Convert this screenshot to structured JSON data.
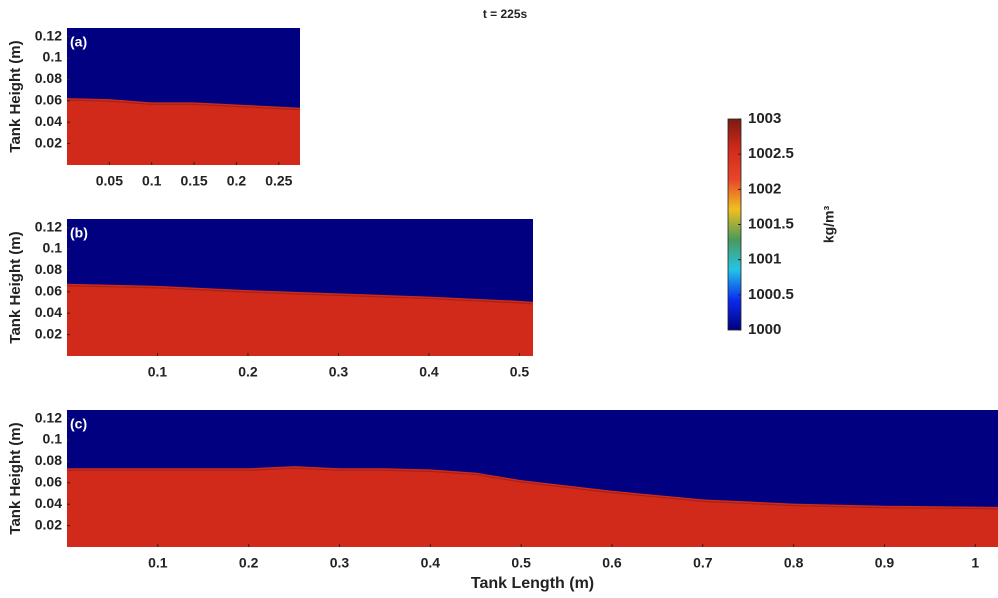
{
  "title": "t = 225s",
  "chart_data": [
    {
      "type": "heatmap",
      "label": "(a)",
      "ylabel": "Tank Height (m)",
      "xlim": [
        0,
        0.275
      ],
      "ylim": [
        0,
        0.128
      ],
      "xticks": [
        0.05,
        0.1,
        0.15,
        0.2,
        0.25
      ],
      "yticks": [
        0.02,
        0.04,
        0.06,
        0.08,
        0.1,
        0.12
      ],
      "interface": {
        "x": [
          0,
          0.05,
          0.1,
          0.15,
          0.2,
          0.25,
          0.275
        ],
        "y": [
          0.07,
          0.069,
          0.066,
          0.066,
          0.064,
          0.062,
          0.061
        ]
      }
    },
    {
      "type": "heatmap",
      "label": "(b)",
      "ylabel": "Tank Height (m)",
      "xlim": [
        0,
        0.515
      ],
      "ylim": [
        0,
        0.128
      ],
      "xticks": [
        0.1,
        0.2,
        0.3,
        0.4,
        0.5
      ],
      "yticks": [
        0.02,
        0.04,
        0.06,
        0.08,
        0.1,
        0.12
      ],
      "interface": {
        "x": [
          0,
          0.1,
          0.2,
          0.3,
          0.4,
          0.5,
          0.515
        ],
        "y": [
          0.075,
          0.073,
          0.069,
          0.066,
          0.063,
          0.059,
          0.058
        ]
      }
    },
    {
      "type": "heatmap",
      "label": "(c)",
      "ylabel": "Tank Height (m)",
      "xlabel": "Tank Length (m)",
      "xlim": [
        0,
        1.025
      ],
      "ylim": [
        0,
        0.128
      ],
      "xticks": [
        0.1,
        0.2,
        0.3,
        0.4,
        0.5,
        0.6,
        0.7,
        0.8,
        0.9,
        1
      ],
      "yticks": [
        0.02,
        0.04,
        0.06,
        0.08,
        0.1,
        0.12
      ],
      "interface": {
        "x": [
          0,
          0.1,
          0.2,
          0.25,
          0.3,
          0.35,
          0.4,
          0.45,
          0.5,
          0.6,
          0.7,
          0.8,
          0.9,
          1.025
        ],
        "y": [
          0.081,
          0.081,
          0.081,
          0.083,
          0.081,
          0.081,
          0.08,
          0.077,
          0.07,
          0.06,
          0.052,
          0.048,
          0.046,
          0.045
        ]
      }
    },
    {
      "type": "colorbar",
      "label": "kg/m³",
      "clim": [
        1000,
        1003
      ],
      "ticks": [
        1000,
        1000.5,
        1001,
        1001.5,
        1002,
        1002.5,
        1003
      ],
      "colors": [
        "#000080",
        "#0a2cf0",
        "#22c4e6",
        "#4a9a5a",
        "#f0c020",
        "#e8452a",
        "#d22a1a",
        "#7a1a12"
      ]
    }
  ]
}
